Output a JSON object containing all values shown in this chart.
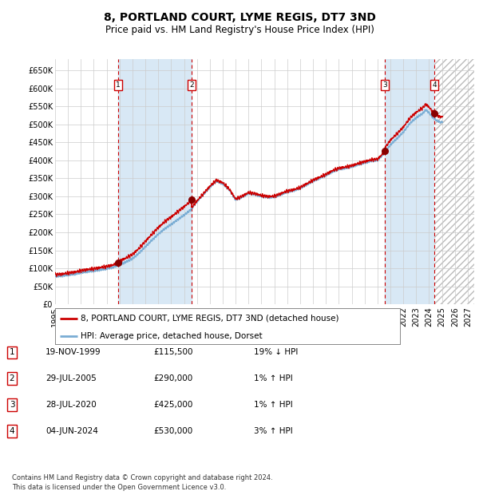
{
  "title": "8, PORTLAND COURT, LYME REGIS, DT7 3ND",
  "subtitle": "Price paid vs. HM Land Registry's House Price Index (HPI)",
  "ylim": [
    0,
    680000
  ],
  "yticks": [
    0,
    50000,
    100000,
    150000,
    200000,
    250000,
    300000,
    350000,
    400000,
    450000,
    500000,
    550000,
    600000,
    650000
  ],
  "ytick_labels": [
    "£0",
    "£50K",
    "£100K",
    "£150K",
    "£200K",
    "£250K",
    "£300K",
    "£350K",
    "£400K",
    "£450K",
    "£500K",
    "£550K",
    "£600K",
    "£650K"
  ],
  "xlim_start": 1995.0,
  "xlim_end": 2027.5,
  "xtick_years": [
    1995,
    1996,
    1997,
    1998,
    1999,
    2000,
    2001,
    2002,
    2003,
    2004,
    2005,
    2006,
    2007,
    2008,
    2009,
    2010,
    2011,
    2012,
    2013,
    2014,
    2015,
    2016,
    2017,
    2018,
    2019,
    2020,
    2021,
    2022,
    2023,
    2024,
    2025,
    2026,
    2027
  ],
  "hpi_color": "#7aadd4",
  "price_color": "#cc0000",
  "sale_dot_color": "#880000",
  "vline_color": "#cc0000",
  "bg_fill_color": "#d8e8f5",
  "grid_color": "#cccccc",
  "purchases": [
    {
      "num": 1,
      "date": 1999.89,
      "price": 115500,
      "label": "1"
    },
    {
      "num": 2,
      "date": 2005.57,
      "price": 290000,
      "label": "2"
    },
    {
      "num": 3,
      "date": 2020.57,
      "price": 425000,
      "label": "3"
    },
    {
      "num": 4,
      "date": 2024.42,
      "price": 530000,
      "label": "4"
    }
  ],
  "table_rows": [
    {
      "num": "1",
      "date": "19-NOV-1999",
      "price": "£115,500",
      "rel": "19% ↓ HPI"
    },
    {
      "num": "2",
      "date": "29-JUL-2005",
      "price": "£290,000",
      "rel": "1% ↑ HPI"
    },
    {
      "num": "3",
      "date": "28-JUL-2020",
      "price": "£425,000",
      "rel": "1% ↑ HPI"
    },
    {
      "num": "4",
      "date": "04-JUN-2024",
      "price": "£530,000",
      "rel": "3% ↑ HPI"
    }
  ],
  "legend_line1": "8, PORTLAND COURT, LYME REGIS, DT7 3ND (detached house)",
  "legend_line2": "HPI: Average price, detached house, Dorset",
  "footer": "Contains HM Land Registry data © Crown copyright and database right 2024.\nThis data is licensed under the Open Government Licence v3.0.",
  "title_fontsize": 10,
  "subtitle_fontsize": 8.5,
  "tick_fontsize": 7,
  "legend_fontsize": 7.5,
  "table_fontsize": 7.5,
  "footer_fontsize": 6
}
